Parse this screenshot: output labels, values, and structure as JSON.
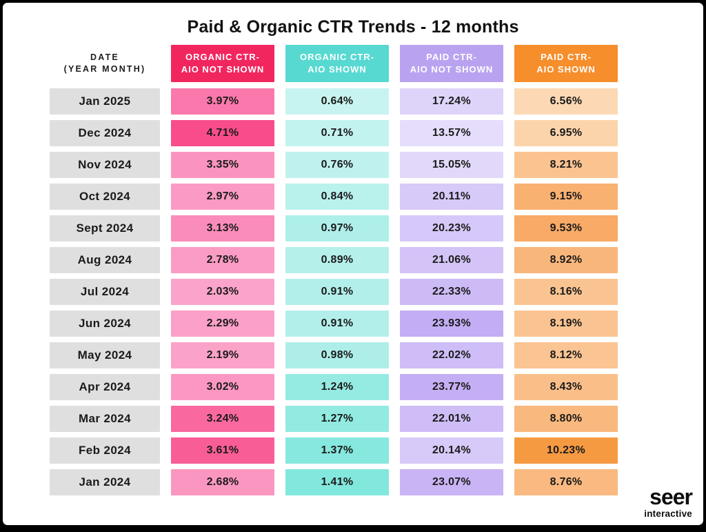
{
  "title": "Paid & Organic CTR Trends - 12 months",
  "logo": {
    "brand": "seer",
    "sub": "interactive"
  },
  "frame": {
    "background": "#000000",
    "card_background": "#ffffff",
    "date_cell_background": "#dfdfdf",
    "text_color": "#1a1a1a"
  },
  "row_header": {
    "line1": "DATE",
    "line2": "(YEAR MONTH)"
  },
  "chart_data": {
    "type": "heatmap",
    "title": "Paid & Organic CTR Trends - 12 months",
    "unit": "%",
    "layout": "table: months as rows (newest first), metrics as columns; cell shade intensity scales with value within each column",
    "legend": "none",
    "categories": [
      "Jan 2025",
      "Dec 2024",
      "Nov 2024",
      "Oct 2024",
      "Sept 2024",
      "Aug 2024",
      "Jul 2024",
      "Jun 2024",
      "May 2024",
      "Apr 2024",
      "Mar 2024",
      "Feb 2024",
      "Jan 2024"
    ],
    "series": [
      {
        "name": "Organic CTR - AIO Not Shown",
        "header_lines": [
          "ORGANIC CTR-",
          "AIO NOT SHOWN"
        ],
        "header_color": "#F2265F",
        "values": [
          3.97,
          4.71,
          3.35,
          2.97,
          3.13,
          2.78,
          2.03,
          2.29,
          2.19,
          3.02,
          3.24,
          3.61,
          2.68
        ],
        "cell_colors": [
          "#FA78AC",
          "#F84C8B",
          "#FB93BF",
          "#FB9AC4",
          "#FA8CBA",
          "#FB9CC5",
          "#FBA4CB",
          "#FBA0C8",
          "#FBA2C9",
          "#FB97C2",
          "#F9699F",
          "#F95D96",
          "#FB96C1"
        ]
      },
      {
        "name": "Organic CTR - AIO Shown",
        "header_lines": [
          "ORGANIC CTR-",
          "AIO SHOWN"
        ],
        "header_color": "#57D9D1",
        "values": [
          0.64,
          0.71,
          0.76,
          0.84,
          0.97,
          0.89,
          0.91,
          0.91,
          0.98,
          1.24,
          1.27,
          1.37,
          1.41
        ],
        "cell_colors": [
          "#C7F4F0",
          "#C3F3EF",
          "#BFF2EE",
          "#B9F1EC",
          "#AEEFE9",
          "#B5F0EB",
          "#B3EFEA",
          "#B3EFEA",
          "#ADEEE9",
          "#95EAE2",
          "#92EAE1",
          "#86E8DE",
          "#82E7DD"
        ]
      },
      {
        "name": "Paid CTR - AIO Not Shown",
        "header_lines": [
          "PAID CTR-",
          "AIO NOT SHOWN"
        ],
        "header_color": "#B9A3F1",
        "values": [
          17.24,
          13.57,
          15.05,
          20.11,
          20.23,
          21.06,
          22.33,
          23.93,
          22.02,
          23.77,
          22.01,
          20.14,
          23.07
        ],
        "cell_colors": [
          "#DED4F9",
          "#E5DDFB",
          "#E2D9FA",
          "#D7C9F8",
          "#D6C8F8",
          "#D3C3F7",
          "#CDBBF6",
          "#C3ADF4",
          "#CEBDF6",
          "#C5AFF4",
          "#CEBDF6",
          "#D7C9F8",
          "#C9B4F5"
        ]
      },
      {
        "name": "Paid CTR - AIO Shown",
        "header_lines": [
          "PAID CTR-",
          "AIO SHOWN"
        ],
        "header_color": "#F68E2C",
        "values": [
          6.56,
          6.95,
          8.21,
          9.15,
          9.53,
          8.92,
          8.16,
          8.19,
          8.12,
          8.43,
          8.8,
          10.23,
          8.76
        ],
        "cell_colors": [
          "#FCD9B4",
          "#FCD4AC",
          "#FAC390",
          "#F9B171",
          "#F8AA66",
          "#F9B67B",
          "#FAC492",
          "#FAC392",
          "#FAC493",
          "#FABF89",
          "#F9B87E",
          "#F69A42",
          "#F9B980"
        ]
      }
    ]
  }
}
